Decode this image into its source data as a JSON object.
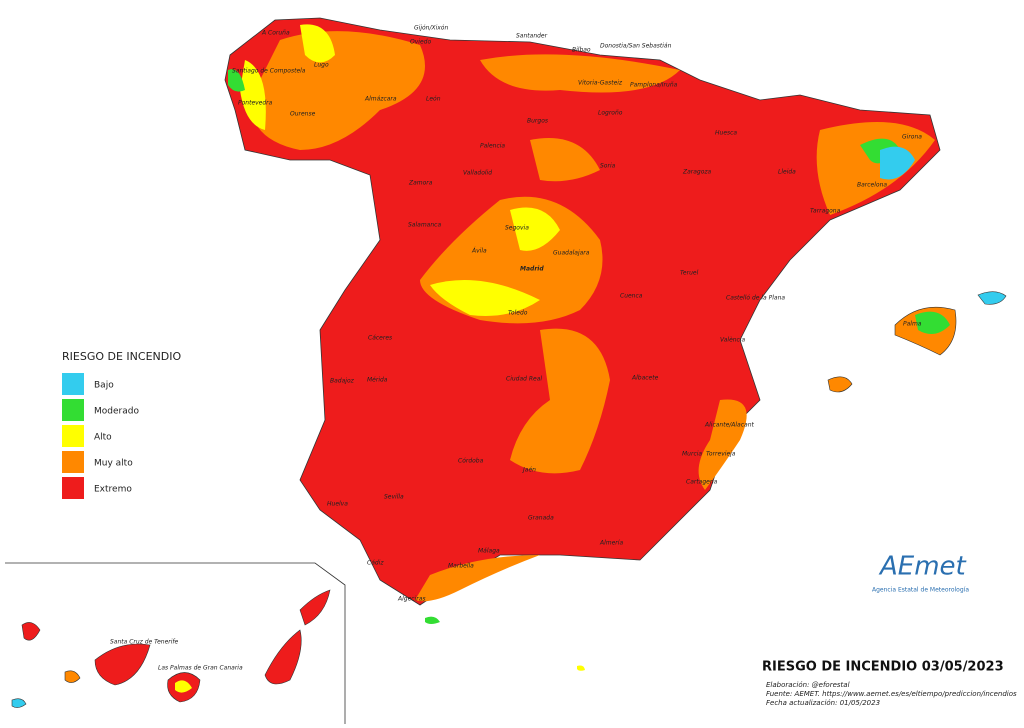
{
  "legend": {
    "title": "RIESGO DE INCENDIO",
    "items": [
      {
        "label": "Bajo",
        "color": "#33ccee"
      },
      {
        "label": "Moderado",
        "color": "#33dd33"
      },
      {
        "label": "Alto",
        "color": "#ffff00"
      },
      {
        "label": "Muy alto",
        "color": "#ff8800"
      },
      {
        "label": "Extremo",
        "color": "#ee1c1c"
      }
    ]
  },
  "title": "RIESGO DE INCENDIO 03/05/2023",
  "credits": [
    "Elaboración: @eforestal",
    "Fuente: AEMET. https://www.aemet.es/es/eltiempo/prediccion/incendios",
    "Fecha actualización: 01/05/2023"
  ],
  "logo": {
    "name": "AEmet",
    "subtitle": "Agencia Estatal de Meteorología"
  },
  "cities": [
    "A Coruña",
    "Gijón/Xixón",
    "Santander",
    "Bilbao",
    "Donostia/San Sebastián",
    "Oviedo",
    "Lugo",
    "Santiago de Compostela",
    "Vitoria-Gasteiz",
    "Pamplona/Iruña",
    "Pontevedra",
    "Almázcara",
    "León",
    "Burgos",
    "Logroño",
    "Ourense",
    "Huesca",
    "Girona",
    "Palencia",
    "Soria",
    "Zaragoza",
    "Lleida",
    "Barcelona",
    "Zamora",
    "Valladolid",
    "Tarragona",
    "Salamanca",
    "Segovia",
    "Ávila",
    "Guadalajara",
    "Madrid",
    "Teruel",
    "Cuenca",
    "Castelló de la Plana",
    "Palma",
    "Toledo",
    "Cáceres",
    "València",
    "Badajoz",
    "Mérida",
    "Ciudad Real",
    "Albacete",
    "Alicante/Alacant",
    "Murcia",
    "Torrevieja",
    "Cartagena",
    "Córdoba",
    "Jaén",
    "Sevilla",
    "Huelva",
    "Granada",
    "Almería",
    "Málaga",
    "Marbella",
    "Cádiz",
    "Algeciras",
    "Santa Cruz de Tenerife",
    "Las Palmas de Gran Canaria"
  ]
}
